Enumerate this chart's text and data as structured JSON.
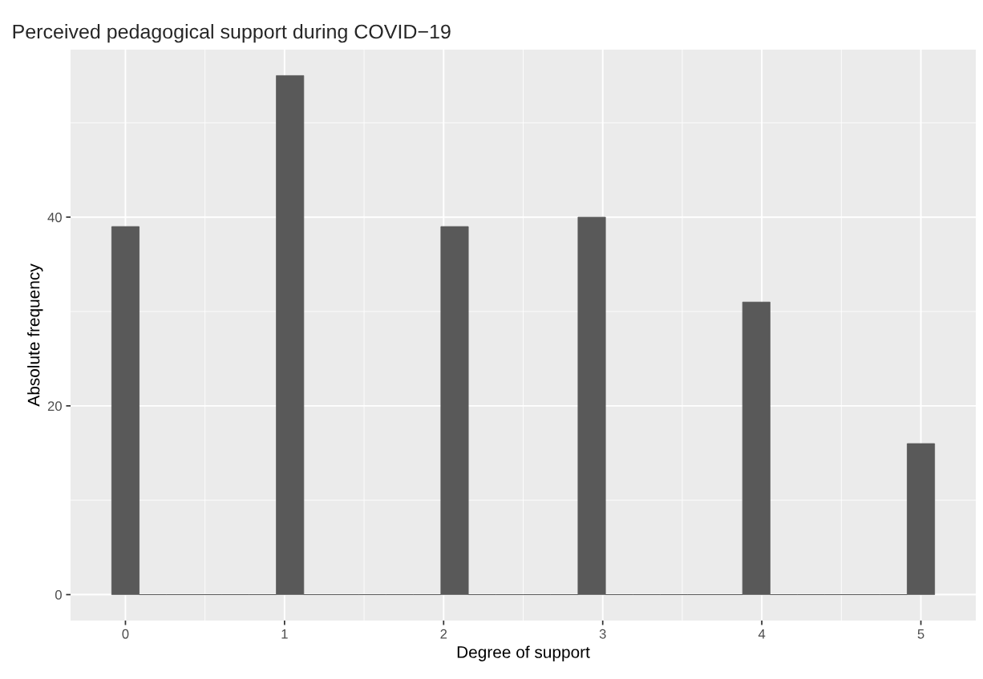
{
  "chart_data": {
    "type": "histogram",
    "title": "Perceived pedagogical support during COVID−19",
    "xlabel": "Degree of support",
    "ylabel": "Absolute frequency",
    "color": "#595959",
    "bins": [
      -0.0862,
      0.0862,
      0.2586,
      0.431,
      0.6034,
      0.7759,
      0.9483,
      1.1207,
      1.2931,
      1.4655,
      1.6379,
      1.8103,
      1.9828,
      2.1552,
      2.3276,
      2.5,
      2.6724,
      2.8448,
      3.0172,
      3.1897,
      3.3621,
      3.5345,
      3.7069,
      3.8793,
      4.0517,
      4.2241,
      4.3966,
      4.569,
      4.7414,
      4.9138,
      5.0862
    ],
    "values": [
      39,
      0,
      0,
      0,
      0,
      0,
      55,
      0,
      0,
      0,
      0,
      0,
      39,
      0,
      0,
      0,
      0,
      40,
      0,
      0,
      0,
      0,
      0,
      31,
      0,
      0,
      0,
      0,
      0,
      16
    ],
    "xlim": [
      -0.345,
      5.345
    ],
    "ylim": [
      -2.75,
      57.75
    ],
    "xticks": [
      0,
      1,
      2,
      3,
      4,
      5
    ],
    "yticks": [
      0,
      20,
      40
    ],
    "grid": true
  }
}
